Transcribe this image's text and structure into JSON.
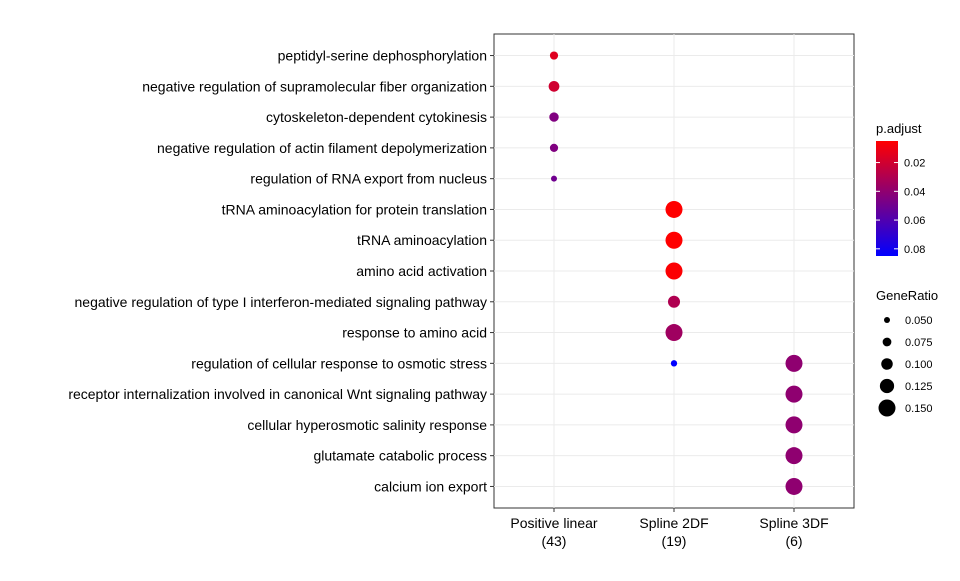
{
  "chart_data": {
    "type": "scatter",
    "title": "",
    "xlabel": "",
    "ylabel": "",
    "categories": [
      {
        "name": "Positive linear",
        "count": "(43)"
      },
      {
        "name": "Spline 2DF",
        "count": "(19)"
      },
      {
        "name": "Spline 3DF",
        "count": "(6)"
      }
    ],
    "terms": [
      "peptidyl-serine dephosphorylation",
      "negative regulation of supramolecular fiber organization",
      "cytoskeleton-dependent cytokinesis",
      "negative regulation of actin filament depolymerization",
      "regulation of RNA export from nucleus",
      "tRNA aminoacylation for protein translation",
      "tRNA aminoacylation",
      "amino acid activation",
      "negative regulation of type I interferon-mediated signaling pathway",
      "response to amino acid",
      "regulation of cellular response to osmotic stress",
      "receptor internalization involved in canonical Wnt signaling pathway",
      "cellular hyperosmotic salinity response",
      "glutamate catabolic process",
      "calcium ion export"
    ],
    "points": [
      {
        "term": "peptidyl-serine dephosphorylation",
        "cluster": "Positive linear",
        "gene_ratio": 0.07,
        "p_adjust": 0.015
      },
      {
        "term": "negative regulation of supramolecular fiber organization",
        "cluster": "Positive linear",
        "gene_ratio": 0.093,
        "p_adjust": 0.02
      },
      {
        "term": "cytoskeleton-dependent cytokinesis",
        "cluster": "Positive linear",
        "gene_ratio": 0.081,
        "p_adjust": 0.045
      },
      {
        "term": "negative regulation of actin filament depolymerization",
        "cluster": "Positive linear",
        "gene_ratio": 0.07,
        "p_adjust": 0.045
      },
      {
        "term": "regulation of RNA export from nucleus",
        "cluster": "Positive linear",
        "gene_ratio": 0.047,
        "p_adjust": 0.05
      },
      {
        "term": "tRNA aminoacylation for protein translation",
        "cluster": "Spline 2DF",
        "gene_ratio": 0.158,
        "p_adjust": 0.005
      },
      {
        "term": "tRNA aminoacylation",
        "cluster": "Spline 2DF",
        "gene_ratio": 0.158,
        "p_adjust": 0.005
      },
      {
        "term": "amino acid activation",
        "cluster": "Spline 2DF",
        "gene_ratio": 0.158,
        "p_adjust": 0.006
      },
      {
        "term": "negative regulation of type I interferon-mediated signaling pathway",
        "cluster": "Spline 2DF",
        "gene_ratio": 0.105,
        "p_adjust": 0.03
      },
      {
        "term": "response to amino acid",
        "cluster": "Spline 2DF",
        "gene_ratio": 0.158,
        "p_adjust": 0.035
      },
      {
        "term": "regulation of cellular response to osmotic stress",
        "cluster": "Spline 2DF",
        "gene_ratio": 0.053,
        "p_adjust": 0.085
      },
      {
        "term": "receptor internalization involved in canonical Wnt signaling pathway",
        "cluster": "Spline 3DF",
        "gene_ratio": 0.167,
        "p_adjust": 0.04
      },
      {
        "term": "regulation of cellular response to osmotic stress",
        "cluster": "Spline 3DF",
        "gene_ratio": 0.167,
        "p_adjust": 0.04
      },
      {
        "term": "cellular hyperosmotic salinity response",
        "cluster": "Spline 3DF",
        "gene_ratio": 0.167,
        "p_adjust": 0.04
      },
      {
        "term": "glutamate catabolic process",
        "cluster": "Spline 3DF",
        "gene_ratio": 0.167,
        "p_adjust": 0.04
      },
      {
        "term": "calcium ion export",
        "cluster": "Spline 3DF",
        "gene_ratio": 0.167,
        "p_adjust": 0.04
      }
    ],
    "color_legend": {
      "title": "p.adjust",
      "ticks": [
        0.02,
        0.04,
        0.06,
        0.08
      ],
      "tick_labels": [
        "0.02",
        "0.04",
        "0.06",
        "0.08"
      ],
      "range": [
        0.005,
        0.085
      ],
      "low_color": "#ff0000",
      "high_color": "#0000ff"
    },
    "size_legend": {
      "title": "GeneRatio",
      "values": [
        0.05,
        0.075,
        0.1,
        0.125,
        0.15
      ],
      "labels": [
        "0.050",
        "0.075",
        "0.100",
        "0.125",
        "0.150"
      ]
    },
    "grid": true,
    "legend_position": "right"
  }
}
